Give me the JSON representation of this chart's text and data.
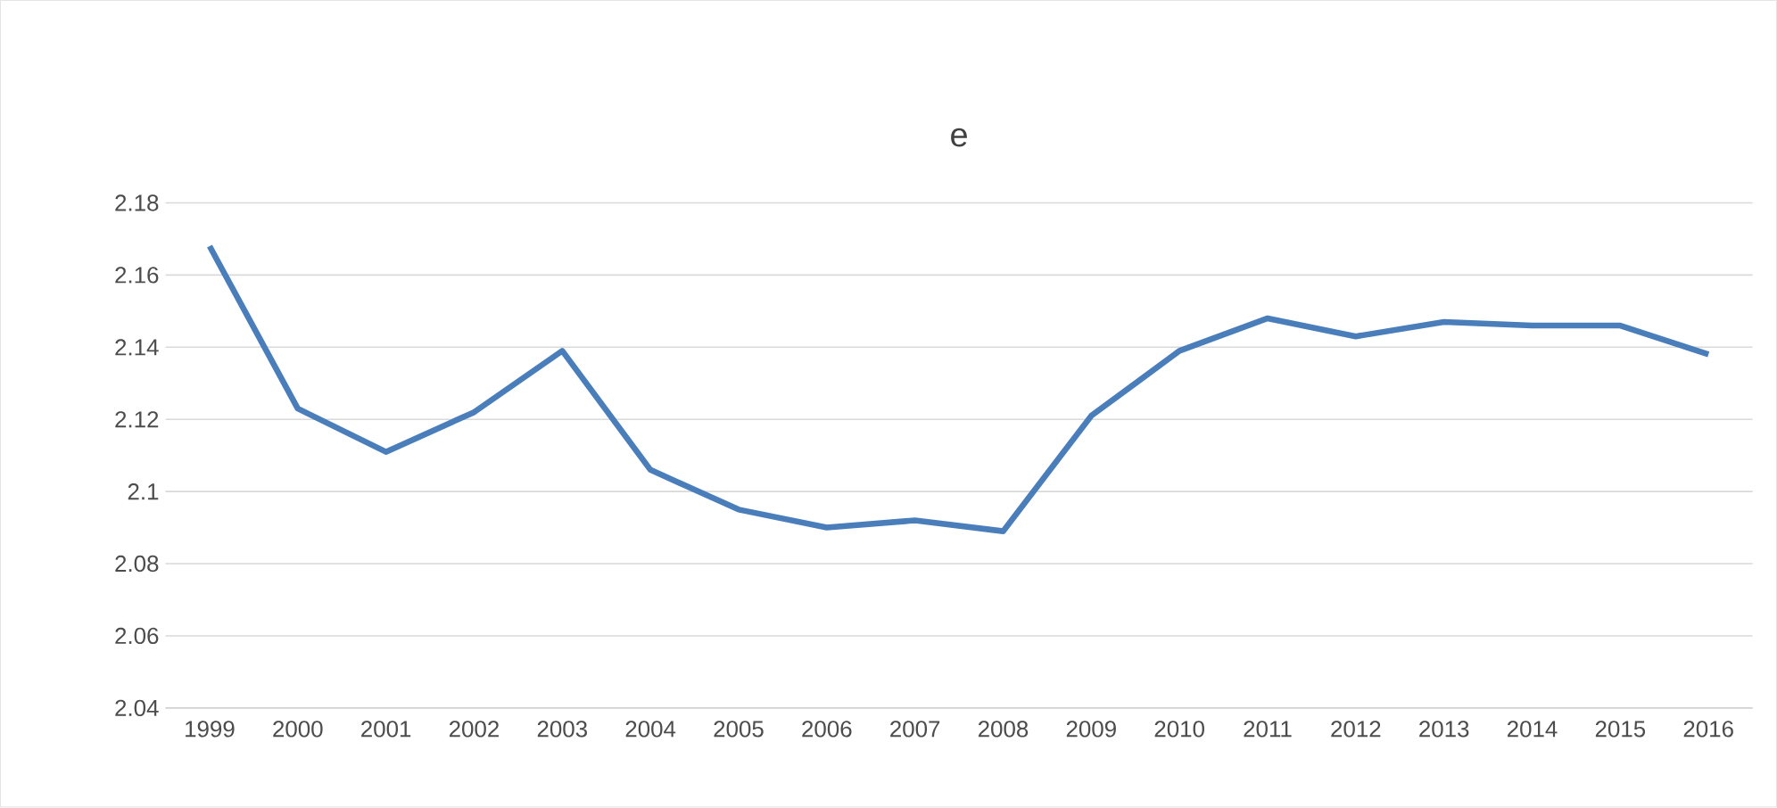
{
  "chart_data": {
    "type": "line",
    "title": "e",
    "categories": [
      "1999",
      "2000",
      "2001",
      "2002",
      "2003",
      "2004",
      "2005",
      "2006",
      "2007",
      "2008",
      "2009",
      "2010",
      "2011",
      "2012",
      "2013",
      "2014",
      "2015",
      "2016"
    ],
    "series": [
      {
        "color": "#4a7ebb",
        "values": [
          2.168,
          2.123,
          2.111,
          2.122,
          2.139,
          2.106,
          2.095,
          2.09,
          2.092,
          2.089,
          2.121,
          2.139,
          2.148,
          2.143,
          2.147,
          2.146,
          2.146,
          2.138
        ]
      }
    ],
    "ylim": [
      2.04,
      2.18
    ],
    "yticks": [
      2.04,
      2.06,
      2.08,
      2.1,
      2.12,
      2.14,
      2.16,
      2.18
    ],
    "grid": "y",
    "marker": "none",
    "line_style": "solid"
  }
}
